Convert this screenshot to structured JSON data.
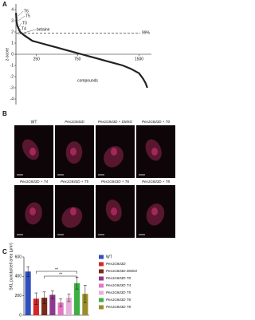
{
  "panels": [
    "A",
    "B",
    "C"
  ],
  "chart_data": [
    {
      "type": "line",
      "ylabel": "z-score",
      "xlabel": "compounds",
      "x": [
        1,
        5,
        10,
        20,
        50,
        100,
        200,
        300,
        400,
        500,
        600,
        700,
        800,
        900,
        1000,
        1100,
        1200,
        1300,
        1400,
        1500,
        1550,
        1580,
        1600
      ],
      "values": [
        3.7,
        3.2,
        2.8,
        2.5,
        2.0,
        1.7,
        1.2,
        1.0,
        0.8,
        0.6,
        0.4,
        0.2,
        0.0,
        -0.2,
        -0.4,
        -0.6,
        -0.8,
        -1.0,
        -1.3,
        -1.7,
        -2.2,
        -2.6,
        -3.0
      ],
      "color": "#222222",
      "xlim": [
        0,
        1650
      ],
      "xticks": [
        250,
        750,
        1500
      ],
      "ylim": [
        -4.5,
        4.5
      ],
      "yticks": [
        4,
        3,
        2,
        1,
        0,
        -1,
        -2,
        -3,
        -4
      ],
      "threshold": 1.9,
      "threshold_label": "99%",
      "annotations": [
        "T6",
        "T5",
        "T0",
        "T4",
        "betaine"
      ]
    },
    {
      "type": "bar",
      "ylabel": "SKL puncta/cell area (µm²)",
      "categories": [
        "WT",
        "Pex1G843D",
        "Pex1G843D DMSO",
        "Pex1G843D T0",
        "Pex1G843D T4",
        "Pex1G843D T5",
        "Pex1G843D T6",
        "Pex1G843D T8"
      ],
      "values": [
        450,
        170,
        180,
        210,
        130,
        180,
        330,
        220
      ],
      "errors": [
        50,
        60,
        60,
        40,
        40,
        40,
        60,
        90
      ],
      "colors": [
        "#2f4fbf",
        "#d62728",
        "#7a2a1a",
        "#8c3a8c",
        "#e377c2",
        "#e8b0d8",
        "#3cb043",
        "#9a8c2a"
      ],
      "ylim": [
        0,
        600
      ],
      "yticks": [
        0,
        200,
        400,
        600
      ],
      "annotations": [
        "**",
        "**"
      ]
    }
  ],
  "images": {
    "labels": [
      "WT",
      "Pex1G843D",
      "Pex1G843D + DMSO",
      "Pex1G843D + T0",
      "Pex1G843D + T4",
      "Pex1G843D + T5",
      "Pex1G843D + T6",
      "Pex1G843D + T8"
    ]
  }
}
